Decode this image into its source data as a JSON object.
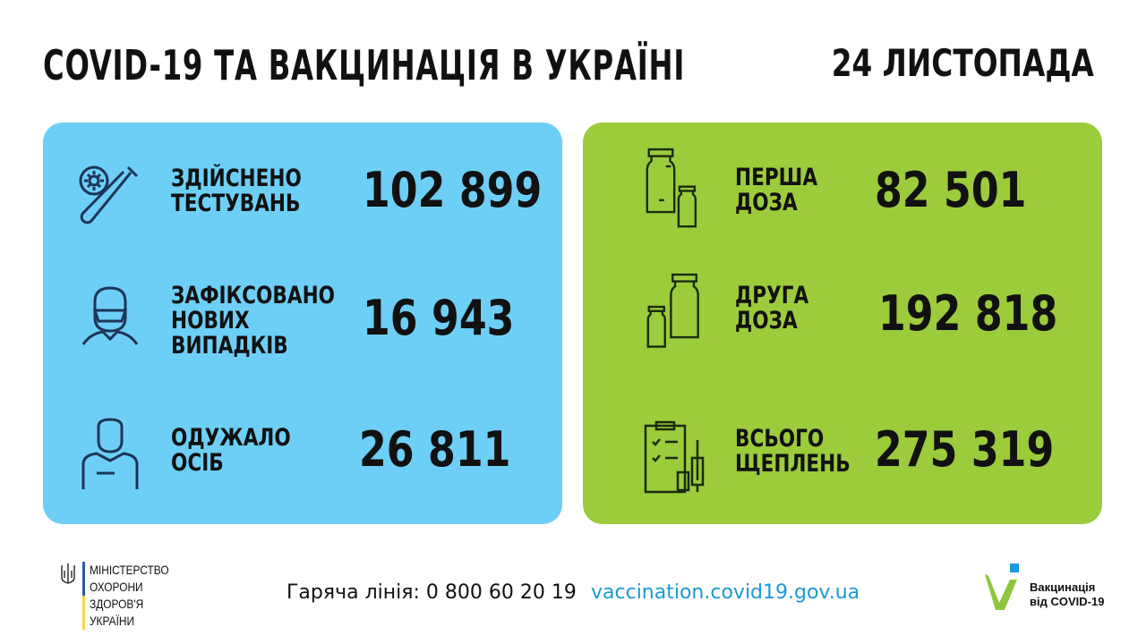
{
  "header": {
    "title": "COVID-19 ТА ВАКЦИНАЦІЯ В УКРАЇНІ",
    "date": "24 ЛИСТОПАДА"
  },
  "colors": {
    "blue_panel": "#6dcff6",
    "green_panel": "#9ccb3b",
    "link": "#1a9ad6"
  },
  "cases": [
    {
      "icon": "test-tube-virus-icon",
      "label": [
        "ЗДІЙСНЕНО",
        "ТЕСТУВАНЬ"
      ],
      "value": "102 899"
    },
    {
      "icon": "masked-person-icon",
      "label": [
        "ЗАФІКСОВАНО",
        "НОВИХ",
        "ВИПАДКІВ"
      ],
      "value": "16 943"
    },
    {
      "icon": "recovered-person-icon",
      "label": [
        "ОДУЖАЛО",
        "ОСІБ"
      ],
      "value": "26 811"
    }
  ],
  "vaccination": [
    {
      "icon": "vaccine-vials-icon",
      "label": [
        "ПЕРША",
        "ДОЗА"
      ],
      "value": "82 501"
    },
    {
      "icon": "vaccine-vials-icon",
      "label": [
        "ДРУГА",
        "ДОЗА"
      ],
      "value": "192 818"
    },
    {
      "icon": "clipboard-syringe-icon",
      "label": [
        "ВСЬОГО",
        "ЩЕПЛЕНЬ"
      ],
      "value": "275 319"
    }
  ],
  "footer": {
    "hotline": "Гаряча лінія: 0 800 60 20 19",
    "website": "vaccination.covid19.gov.ua",
    "ministry": [
      "МІНІСТЕРСТВО",
      "ОХОРОНИ",
      "ЗДОРОВ'Я",
      "УКРАЇНИ"
    ],
    "campaign": [
      "Вакцинація",
      "від COVID-19"
    ]
  }
}
